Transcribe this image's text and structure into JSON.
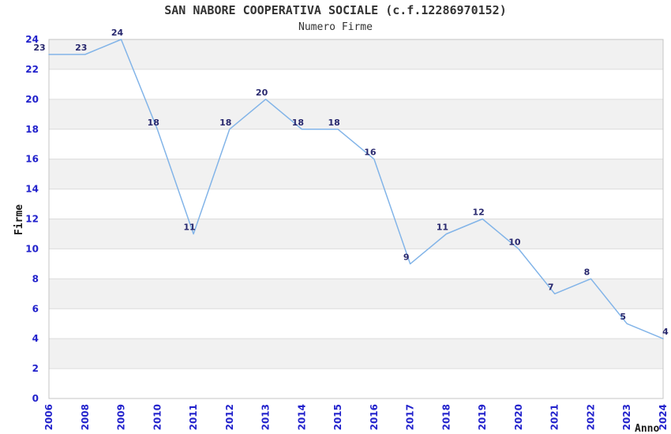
{
  "chart_data": {
    "type": "line",
    "title": "SAN NABORE COOPERATIVA SOCIALE (c.f.12286970152)",
    "subtitle": "Numero Firme",
    "xlabel": "Anno",
    "ylabel": "Firme",
    "categories": [
      "2006",
      "2008",
      "2009",
      "2010",
      "2011",
      "2012",
      "2013",
      "2014",
      "2015",
      "2016",
      "2017",
      "2018",
      "2019",
      "2020",
      "2021",
      "2022",
      "2023",
      "2024"
    ],
    "values": [
      23,
      23,
      24,
      18,
      11,
      18,
      20,
      18,
      18,
      16,
      9,
      11,
      12,
      10,
      7,
      8,
      5,
      4
    ],
    "series": [
      {
        "name": "Numero Firme",
        "values": [
          23,
          23,
          24,
          18,
          11,
          18,
          20,
          18,
          18,
          16,
          9,
          11,
          12,
          10,
          7,
          8,
          5,
          4
        ]
      }
    ],
    "ylim": [
      0,
      24
    ],
    "yticks": [
      0,
      2,
      4,
      6,
      8,
      10,
      12,
      14,
      16,
      18,
      20,
      22,
      24
    ],
    "grid": "horizontal-bands",
    "legend": "none",
    "data_labels": true,
    "colors": {
      "line": "#82b4e8",
      "tick_label": "#2222cc",
      "data_label": "#28286e",
      "axis_title": "#1a1a1a",
      "band": "#f1f1f1",
      "gridline": "#dcdcdc",
      "border": "#c4c4c4",
      "background": "#ffffff"
    }
  }
}
